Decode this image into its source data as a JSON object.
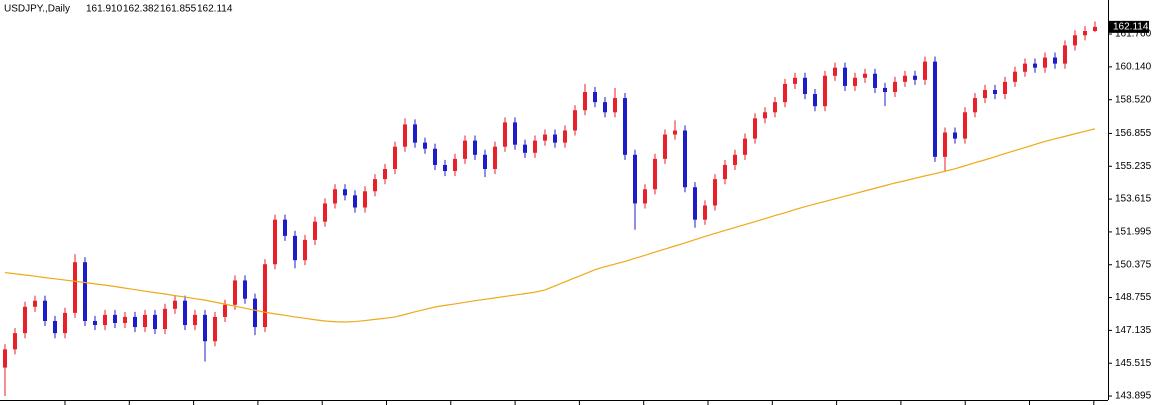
{
  "chart_data": {
    "type": "candlestick",
    "title": "USDJPY.,Daily",
    "header_values": [
      "161.910",
      "162.382",
      "161.855",
      "162.114"
    ],
    "last_price": {
      "value": 162.114,
      "label": "162.114"
    },
    "up_color": "#e8202a",
    "down_color": "#1c1cc8",
    "ma_color": "#f0a818",
    "ylim": [
      143.7,
      163.44
    ],
    "yticks": [
      143.895,
      145.515,
      147.135,
      148.755,
      150.375,
      151.995,
      153.615,
      155.235,
      156.855,
      {
        "value": 158.52,
        "label": "158.520"
      },
      {
        "value": 160.14,
        "label": "160.140"
      },
      {
        "value": 161.76,
        "label": "161.760"
      }
    ],
    "open": [
      145.3,
      146.2,
      147.0,
      148.3,
      148.6,
      147.6,
      147.0,
      148.0,
      150.5,
      147.6,
      147.4,
      147.9,
      147.5,
      147.8,
      147.3,
      147.9,
      147.2,
      148.2,
      148.6,
      147.4,
      147.9,
      146.6,
      147.8,
      148.4,
      149.6,
      148.7,
      147.3,
      150.4,
      152.6,
      151.8,
      150.6,
      151.6,
      152.5,
      153.4,
      154.1,
      153.8,
      153.2,
      154.0,
      154.6,
      155.1,
      156.2,
      157.3,
      156.4,
      156.1,
      155.3,
      155.0,
      155.6,
      156.5,
      155.8,
      155.1,
      156.2,
      157.4,
      156.3,
      155.9,
      156.5,
      156.8,
      156.4,
      157.0,
      158.0,
      158.9,
      158.4,
      157.9,
      158.6,
      155.8,
      153.4,
      154.1,
      155.6,
      156.8,
      157.0,
      154.2,
      152.6,
      153.3,
      154.6,
      155.3,
      155.8,
      156.6,
      157.6,
      157.9,
      158.4,
      159.3,
      159.6,
      158.8,
      158.2,
      159.7,
      160.1,
      159.2,
      159.6,
      159.8,
      159.1,
      158.9,
      159.4,
      159.7,
      159.5,
      160.4,
      155.7,
      156.9,
      156.6,
      157.9,
      158.6,
      159.0,
      158.8,
      159.4,
      159.9,
      160.3,
      160.1,
      160.6,
      160.3,
      161.2,
      161.7,
      161.91
    ],
    "high": [
      146.45,
      147.25,
      148.55,
      148.85,
      148.85,
      147.85,
      148.25,
      150.9,
      150.75,
      147.85,
      148.15,
      148.15,
      148.05,
      148.05,
      148.15,
      148.15,
      148.45,
      148.85,
      148.85,
      148.15,
      148.15,
      148.05,
      148.65,
      149.85,
      149.85,
      148.95,
      150.65,
      152.85,
      152.85,
      152.05,
      151.85,
      152.75,
      153.65,
      154.35,
      154.35,
      154.05,
      154.25,
      154.85,
      155.35,
      156.45,
      157.6,
      157.55,
      156.65,
      156.35,
      155.55,
      155.85,
      156.75,
      156.75,
      156.05,
      156.45,
      157.65,
      157.65,
      156.55,
      156.75,
      157.05,
      157.05,
      157.25,
      158.25,
      159.3,
      159.15,
      158.65,
      159.1,
      158.85,
      156.05,
      154.35,
      155.85,
      157.05,
      157.5,
      157.25,
      154.45,
      153.55,
      154.85,
      155.55,
      156.05,
      156.85,
      157.85,
      158.15,
      158.65,
      159.55,
      159.85,
      159.85,
      159.05,
      159.95,
      160.35,
      160.35,
      159.85,
      160.05,
      160.05,
      159.35,
      159.65,
      159.95,
      159.95,
      160.65,
      160.65,
      157.15,
      157.15,
      158.15,
      158.85,
      159.25,
      159.25,
      159.65,
      160.15,
      160.55,
      160.55,
      160.85,
      160.85,
      161.45,
      161.95,
      162.15,
      162.382
    ],
    "low": [
      143.9,
      145.95,
      146.75,
      148.05,
      147.35,
      146.75,
      146.75,
      147.75,
      147.35,
      147.15,
      147.15,
      147.25,
      147.25,
      147.05,
      147.05,
      146.95,
      146.95,
      147.95,
      147.15,
      147.15,
      145.6,
      146.35,
      147.55,
      148.15,
      148.45,
      146.9,
      147.05,
      150.15,
      151.55,
      150.2,
      150.35,
      151.35,
      152.25,
      153.15,
      153.55,
      152.95,
      152.95,
      153.75,
      154.35,
      154.85,
      155.95,
      156.15,
      155.85,
      155.05,
      154.75,
      154.75,
      155.35,
      155.55,
      154.7,
      154.85,
      155.95,
      156.05,
      155.65,
      155.65,
      156.25,
      156.15,
      156.15,
      156.75,
      157.75,
      158.15,
      157.65,
      157.65,
      155.55,
      152.1,
      153.15,
      153.85,
      155.35,
      156.55,
      153.95,
      152.2,
      152.35,
      153.05,
      154.35,
      155.05,
      155.55,
      156.35,
      157.35,
      157.65,
      158.15,
      159.05,
      158.55,
      157.95,
      157.95,
      159.45,
      158.95,
      158.95,
      159.35,
      158.85,
      158.2,
      158.65,
      159.15,
      159.25,
      159.25,
      155.45,
      155.0,
      156.35,
      156.35,
      157.65,
      158.35,
      158.55,
      158.55,
      159.15,
      159.65,
      159.85,
      159.85,
      160.05,
      160.05,
      160.95,
      161.45,
      161.855
    ],
    "close": [
      146.2,
      147.0,
      148.3,
      148.6,
      147.6,
      147.0,
      148.0,
      150.5,
      147.6,
      147.4,
      147.9,
      147.5,
      147.8,
      147.3,
      147.9,
      147.2,
      148.2,
      148.6,
      147.4,
      147.9,
      146.6,
      147.8,
      148.4,
      149.6,
      148.7,
      147.3,
      150.4,
      152.6,
      151.8,
      150.6,
      151.6,
      152.5,
      153.4,
      154.1,
      153.8,
      153.2,
      154.0,
      154.6,
      155.1,
      156.2,
      157.3,
      156.4,
      156.1,
      155.3,
      155.0,
      155.6,
      156.5,
      155.8,
      155.1,
      156.2,
      157.4,
      156.3,
      155.9,
      156.5,
      156.8,
      156.4,
      157.0,
      158.0,
      158.9,
      158.4,
      157.9,
      158.6,
      155.8,
      153.4,
      154.1,
      155.6,
      156.8,
      157.0,
      154.2,
      152.6,
      153.3,
      154.6,
      155.3,
      155.8,
      156.6,
      157.6,
      157.9,
      158.4,
      159.3,
      159.6,
      158.8,
      158.2,
      159.7,
      160.1,
      159.2,
      159.6,
      159.8,
      159.1,
      158.9,
      159.4,
      159.7,
      159.5,
      160.4,
      155.7,
      156.9,
      156.6,
      157.9,
      158.6,
      159.0,
      158.8,
      159.4,
      159.9,
      160.3,
      160.1,
      160.6,
      160.3,
      161.2,
      161.7,
      161.91,
      162.114
    ],
    "ma": [
      149.99,
      149.93,
      149.87,
      149.81,
      149.74,
      149.68,
      149.62,
      149.56,
      149.5,
      149.43,
      149.37,
      149.3,
      149.22,
      149.15,
      149.07,
      149.0,
      148.93,
      148.85,
      148.78,
      148.7,
      148.63,
      148.53,
      148.43,
      148.33,
      148.23,
      148.13,
      148.03,
      147.95,
      147.88,
      147.8,
      147.73,
      147.66,
      147.6,
      147.56,
      147.55,
      147.57,
      147.62,
      147.68,
      147.73,
      147.8,
      147.92,
      148.05,
      148.17,
      148.29,
      148.37,
      148.44,
      148.52,
      148.6,
      148.67,
      148.74,
      148.81,
      148.88,
      148.95,
      149.02,
      149.13,
      149.33,
      149.53,
      149.73,
      149.93,
      150.13,
      150.28,
      150.41,
      150.54,
      150.69,
      150.84,
      151.0,
      151.15,
      151.3,
      151.45,
      151.61,
      151.77,
      151.92,
      152.07,
      152.21,
      152.36,
      152.5,
      152.65,
      152.8,
      152.94,
      153.1,
      153.24,
      153.37,
      153.5,
      153.63,
      153.76,
      153.89,
      154.02,
      154.15,
      154.28,
      154.41,
      154.52,
      154.64,
      154.76,
      154.87,
      154.99,
      155.11,
      155.26,
      155.41,
      155.55,
      155.7,
      155.86,
      156.01,
      156.16,
      156.31,
      156.46,
      156.59,
      156.71,
      156.84,
      156.96,
      157.08
    ]
  }
}
